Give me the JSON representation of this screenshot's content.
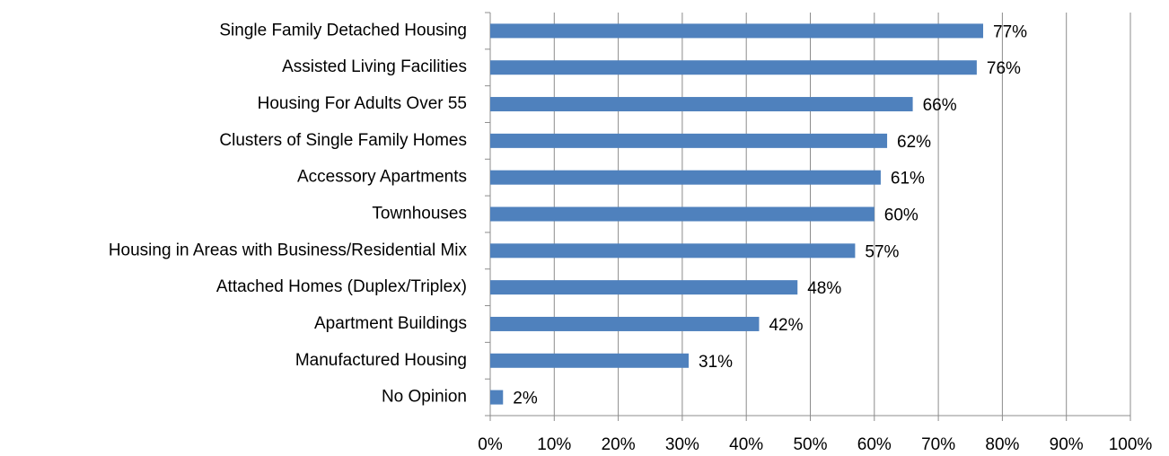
{
  "chart_data": {
    "type": "bar",
    "orientation": "horizontal",
    "categories": [
      "Single Family Detached Housing",
      "Assisted Living Facilities",
      "Housing For Adults Over 55",
      "Clusters of Single Family Homes",
      "Accessory Apartments",
      "Townhouses",
      "Housing in Areas with Business/Residential Mix",
      "Attached Homes (Duplex/Triplex)",
      "Apartment Buildings",
      "Manufactured Housing",
      "No Opinion"
    ],
    "values": [
      77,
      76,
      66,
      62,
      61,
      60,
      57,
      48,
      42,
      31,
      2
    ],
    "value_labels": [
      "77%",
      "76%",
      "66%",
      "62%",
      "61%",
      "60%",
      "57%",
      "48%",
      "42%",
      "31%",
      "2%"
    ],
    "color": "#4f81bd",
    "xlim": [
      0,
      100
    ],
    "xticks": [
      {
        "value": 0,
        "label": "0%"
      },
      {
        "value": 10,
        "label": "10%"
      },
      {
        "value": 20,
        "label": "20%"
      },
      {
        "value": 30,
        "label": "30%"
      },
      {
        "value": 40,
        "label": "40%"
      },
      {
        "value": 50,
        "label": "50%"
      },
      {
        "value": 60,
        "label": "60%"
      },
      {
        "value": 70,
        "label": "70%"
      },
      {
        "value": 80,
        "label": "80%"
      },
      {
        "value": 90,
        "label": "90%"
      },
      {
        "value": 100,
        "label": "100%"
      }
    ],
    "grid": true
  }
}
